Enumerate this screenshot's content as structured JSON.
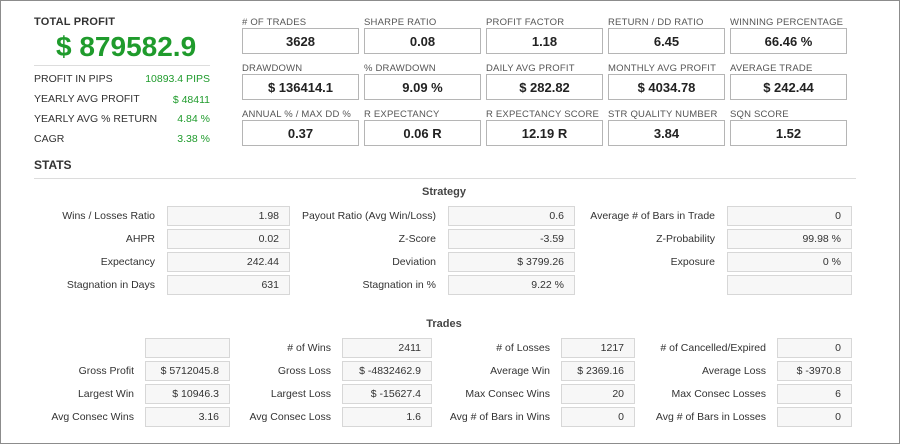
{
  "total_profit": {
    "label": "TOTAL PROFIT",
    "value": "$ 879582.9"
  },
  "summary": [
    {
      "label": "PROFIT IN PIPS",
      "value": "10893.4 PIPS"
    },
    {
      "label": "YEARLY AVG PROFIT",
      "value": "$ 48411"
    },
    {
      "label": "YEARLY AVG % RETURN",
      "value": "4.84 %"
    },
    {
      "label": "CAGR",
      "value": "3.38 %"
    }
  ],
  "metrics": [
    {
      "label": "# OF TRADES",
      "value": "3628"
    },
    {
      "label": "SHARPE RATIO",
      "value": "0.08"
    },
    {
      "label": "PROFIT FACTOR",
      "value": "1.18"
    },
    {
      "label": "RETURN / DD RATIO",
      "value": "6.45"
    },
    {
      "label": "WINNING PERCENTAGE",
      "value": "66.46 %"
    },
    {
      "label": "DRAWDOWN",
      "value": "$ 136414.1"
    },
    {
      "label": "% DRAWDOWN",
      "value": "9.09 %"
    },
    {
      "label": "DAILY AVG PROFIT",
      "value": "$ 282.82"
    },
    {
      "label": "MONTHLY AVG PROFIT",
      "value": "$ 4034.78"
    },
    {
      "label": "AVERAGE TRADE",
      "value": "$ 242.44"
    },
    {
      "label": "ANNUAL % / MAX DD %",
      "value": "0.37"
    },
    {
      "label": "R EXPECTANCY",
      "value": "0.06 R"
    },
    {
      "label": "R EXPECTANCY SCORE",
      "value": "12.19 R"
    },
    {
      "label": "STR QUALITY NUMBER",
      "value": "3.84"
    },
    {
      "label": "SQN SCORE",
      "value": "1.52"
    }
  ],
  "stats": {
    "title": "STATS",
    "strategy": {
      "title": "Strategy",
      "rows": [
        [
          {
            "label": "Wins / Losses Ratio",
            "value": "1.98"
          },
          {
            "label": "Payout Ratio (Avg Win/Loss)",
            "value": "0.6"
          },
          {
            "label": "Average # of Bars in Trade",
            "value": "0"
          }
        ],
        [
          {
            "label": "AHPR",
            "value": "0.02"
          },
          {
            "label": "Z-Score",
            "value": "-3.59"
          },
          {
            "label": "Z-Probability",
            "value": "99.98 %"
          }
        ],
        [
          {
            "label": "Expectancy",
            "value": "242.44"
          },
          {
            "label": "Deviation",
            "value": "$ 3799.26"
          },
          {
            "label": "Exposure",
            "value": "0 %"
          }
        ],
        [
          {
            "label": "Stagnation in Days",
            "value": "631"
          },
          {
            "label": "Stagnation in %",
            "value": "9.22 %"
          },
          {
            "label": "",
            "value": ""
          }
        ]
      ]
    },
    "trades": {
      "title": "Trades",
      "rows": [
        [
          {
            "label": "",
            "value": ""
          },
          {
            "label": "# of Wins",
            "value": "2411"
          },
          {
            "label": "# of Losses",
            "value": "1217"
          },
          {
            "label": "# of Cancelled/Expired",
            "value": "0"
          }
        ],
        [
          {
            "label": "Gross Profit",
            "value": "$ 5712045.8"
          },
          {
            "label": "Gross Loss",
            "value": "$ -4832462.9"
          },
          {
            "label": "Average Win",
            "value": "$ 2369.16"
          },
          {
            "label": "Average Loss",
            "value": "$ -3970.8"
          }
        ],
        [
          {
            "label": "Largest Win",
            "value": "$ 10946.3"
          },
          {
            "label": "Largest Loss",
            "value": "$ -15627.4"
          },
          {
            "label": "Max Consec Wins",
            "value": "20"
          },
          {
            "label": "Max Consec Losses",
            "value": "6"
          }
        ],
        [
          {
            "label": "Avg Consec Wins",
            "value": "3.16"
          },
          {
            "label": "Avg Consec Loss",
            "value": "1.6"
          },
          {
            "label": "Avg # of Bars in Wins",
            "value": "0"
          },
          {
            "label": "Avg # of Bars in Losses",
            "value": "0"
          }
        ]
      ]
    }
  }
}
